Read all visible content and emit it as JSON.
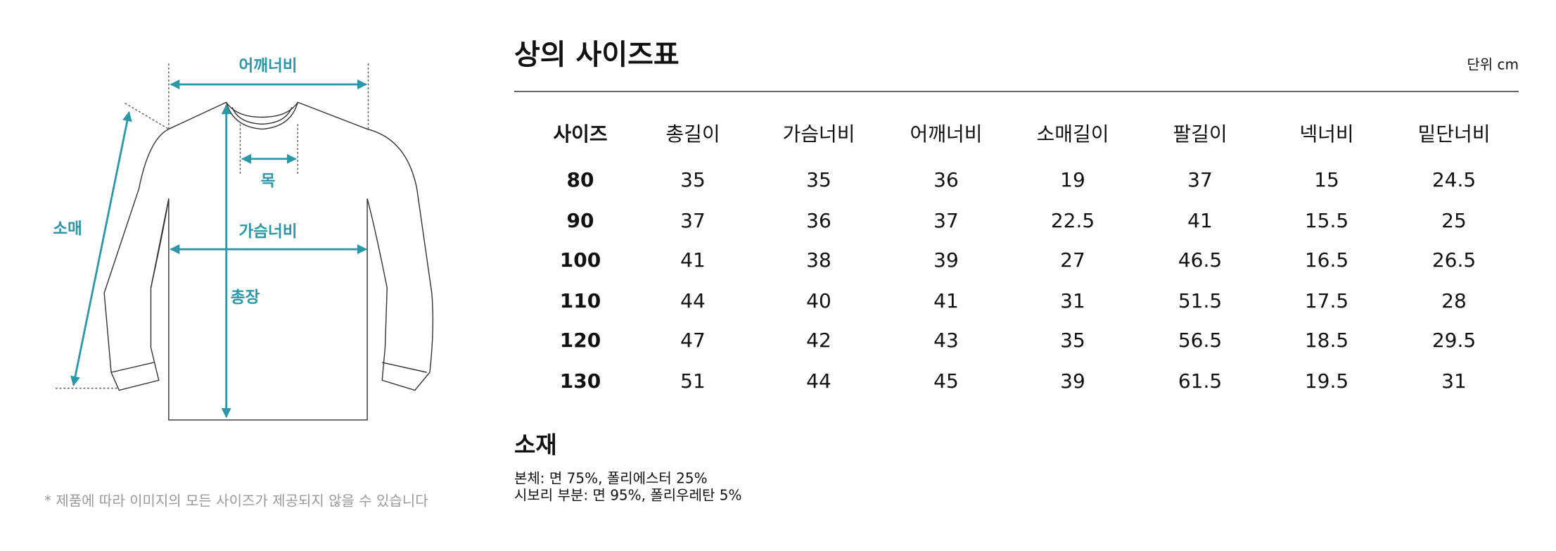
{
  "diagram": {
    "labels": {
      "shoulder": "어깨너비",
      "neck": "목",
      "sleeve": "소매",
      "chest": "가슴너비",
      "length": "총장"
    }
  },
  "header": {
    "title": "상의 사이즈표",
    "unit": "단위 cm"
  },
  "table": {
    "columns": [
      "사이즈",
      "총길이",
      "가슴너비",
      "어깨너비",
      "소매길이",
      "팔길이",
      "넥너비",
      "밑단너비"
    ],
    "rows": [
      [
        80,
        35,
        35,
        36,
        19,
        37,
        15,
        24.5
      ],
      [
        90,
        37,
        36,
        37,
        22.5,
        41,
        15.5,
        25
      ],
      [
        100,
        41,
        38,
        39,
        27,
        46.5,
        16.5,
        26.5
      ],
      [
        110,
        44,
        40,
        41,
        31,
        51.5,
        17.5,
        28
      ],
      [
        120,
        47,
        42,
        43,
        35,
        56.5,
        18.5,
        29.5
      ],
      [
        130,
        51,
        44,
        45,
        39,
        61.5,
        19.5,
        31
      ]
    ]
  },
  "material": {
    "title": "소재",
    "lines": [
      "본체: 면 75%, 폴리에스터 25%",
      "시보리 부분: 면 95%, 폴리우레탄 5%"
    ]
  },
  "footnote": "* 제품에 따라 이미지의 모든 사이즈가 제공되지 않을 수 있습니다"
}
